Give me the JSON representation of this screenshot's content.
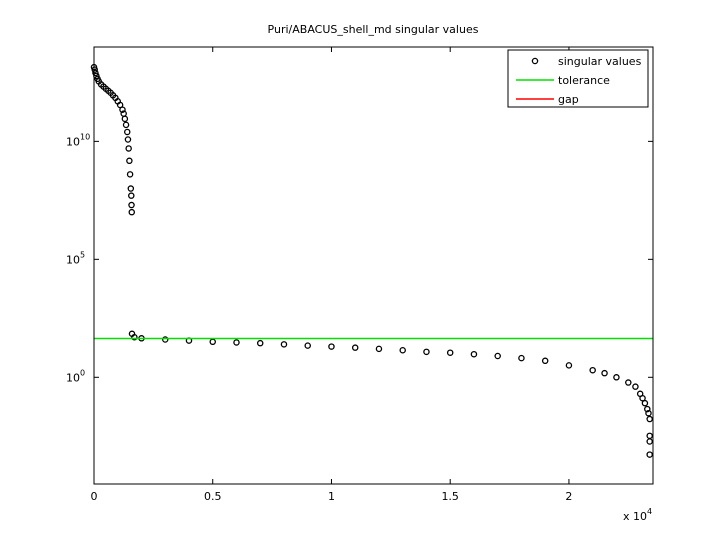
{
  "chart_data": {
    "type": "scatter",
    "title": "Puri/ABACUS_shell_md singular values",
    "x_multiplier": {
      "label": "x 10",
      "power": "4"
    },
    "xlim": [
      0,
      2.354
    ],
    "xticks": [
      0,
      0.5,
      1,
      1.5,
      2
    ],
    "ylim": [
      3e-05,
      100000000000000
    ],
    "log_y": true,
    "yticks": [
      {
        "value": 1,
        "label": "10",
        "power": "0"
      },
      {
        "value": 100000,
        "label": "10",
        "power": "5"
      },
      {
        "value": 10000000000,
        "label": "10",
        "power": "10"
      }
    ],
    "legend_position": "upper-right",
    "series": [
      {
        "name": "singular values",
        "color": "#000000",
        "mark": "circle",
        "x": [
          0,
          0.003,
          0.006,
          0.01,
          0.015,
          0.02,
          0.03,
          0.04,
          0.05,
          0.06,
          0.07,
          0.08,
          0.09,
          0.1,
          0.11,
          0.12,
          0.125,
          0.13,
          0.135,
          0.14,
          0.143,
          0.146,
          0.149,
          0.152,
          0.155,
          0.157,
          0.158,
          0.159,
          0.16,
          0.17,
          0.2,
          0.3,
          0.4,
          0.5,
          0.6,
          0.7,
          0.8,
          0.9,
          1.0,
          1.1,
          1.2,
          1.3,
          1.4,
          1.5,
          1.6,
          1.7,
          1.8,
          1.9,
          2.0,
          2.1,
          2.15,
          2.2,
          2.25,
          2.28,
          2.3,
          2.31,
          2.32,
          2.33,
          2.335,
          2.34,
          2.34,
          2.34,
          2.34
        ],
        "values": [
          14000000000000,
          11000000000000,
          8000000000000,
          6000000000000,
          4500000000000,
          3500000000000,
          2600000000000,
          2100000000000,
          1700000000000,
          1400000000000,
          1150000000000,
          900000000000,
          700000000000,
          500000000000,
          350000000000,
          220000000000,
          150000000000,
          90000000000,
          50000000000,
          25000000000,
          12000000000,
          5000000000,
          1500000000,
          400000000,
          100000000,
          50000000,
          20000000,
          10000000,
          70,
          50,
          45,
          40,
          36,
          32,
          30,
          28,
          25,
          22,
          20,
          18,
          16,
          14,
          12,
          11,
          9.5,
          8,
          6.5,
          5,
          3.2,
          2,
          1.5,
          1,
          0.6,
          0.4,
          0.2,
          0.13,
          0.08,
          0.045,
          0.03,
          0.017,
          0.0033,
          0.0019,
          0.00053
        ]
      },
      {
        "name": "tolerance",
        "color": "#00e000",
        "mark": "hline",
        "value": 44
      },
      {
        "name": "gap",
        "color": "#ff0000",
        "mark": "vline"
      }
    ]
  }
}
